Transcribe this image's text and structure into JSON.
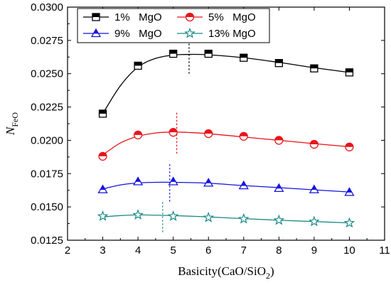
{
  "chart_data": {
    "type": "line",
    "xlabel": {
      "main": "Basicity(CaO/SiO",
      "sub": "2",
      "close": ")"
    },
    "ylabel": {
      "main": "N",
      "sub": "FeO"
    },
    "xlim": [
      2,
      11
    ],
    "ylim": [
      0.0125,
      0.03
    ],
    "xticks": [
      2,
      3,
      4,
      5,
      6,
      7,
      8,
      9,
      10,
      11
    ],
    "yticks": [
      "0.0125",
      "0.0150",
      "0.0175",
      "0.0200",
      "0.0225",
      "0.0250",
      "0.0275",
      "0.0300"
    ],
    "legend_position": "top-left",
    "grid": false,
    "x": [
      3,
      4,
      5,
      6,
      7,
      8,
      9,
      10
    ],
    "series": [
      {
        "name": "1%   MgO",
        "marker": "square",
        "color": "#000000",
        "values": [
          0.022,
          0.0256,
          0.0265,
          0.0265,
          0.0262,
          0.0258,
          0.0254,
          0.0251
        ],
        "curve": [
          [
            3,
            0.022
          ],
          [
            3.5,
            0.0241
          ],
          [
            4,
            0.0255
          ],
          [
            4.5,
            0.02615
          ],
          [
            5,
            0.0264
          ],
          [
            5.5,
            0.02645
          ],
          [
            6,
            0.02642
          ],
          [
            7,
            0.0262
          ],
          [
            8,
            0.02585
          ],
          [
            9,
            0.02545
          ],
          [
            10,
            0.0251
          ]
        ],
        "peak_x": 5.45,
        "peak_range": [
          0.025,
          0.0277
        ]
      },
      {
        "name": "5%   MgO",
        "marker": "circle",
        "color": "#e8141b",
        "values": [
          0.0188,
          0.0204,
          0.0206,
          0.0205,
          0.0203,
          0.02,
          0.0197,
          0.0195
        ],
        "curve": [
          [
            3,
            0.0189
          ],
          [
            3.5,
            0.0198
          ],
          [
            4,
            0.0203
          ],
          [
            4.5,
            0.02055
          ],
          [
            5,
            0.02062
          ],
          [
            5.5,
            0.02058
          ],
          [
            6,
            0.0205
          ],
          [
            7,
            0.02025
          ],
          [
            8,
            0.02
          ],
          [
            9,
            0.01975
          ],
          [
            10,
            0.01952
          ]
        ],
        "peak_x": 5.1,
        "peak_range": [
          0.019,
          0.0222
        ]
      },
      {
        "name": "9%   MgO",
        "marker": "triangle",
        "color": "#1515e0",
        "values": [
          0.0163,
          0.0169,
          0.0169,
          0.0168,
          0.0166,
          0.0164,
          0.0163,
          0.0161
        ],
        "curve": [
          [
            3,
            0.01635
          ],
          [
            3.5,
            0.01665
          ],
          [
            4,
            0.0168
          ],
          [
            4.5,
            0.01685
          ],
          [
            5,
            0.01685
          ],
          [
            6,
            0.01678
          ],
          [
            7,
            0.0166
          ],
          [
            8,
            0.01645
          ],
          [
            9,
            0.01628
          ],
          [
            10,
            0.01612
          ]
        ],
        "peak_x": 4.9,
        "peak_range": [
          0.0154,
          0.0182
        ]
      },
      {
        "name": "13% MgO",
        "marker": "star",
        "color": "#1a8a85",
        "values": [
          0.0143,
          0.0144,
          0.0143,
          0.0142,
          0.0141,
          0.014,
          0.0139,
          0.0138
        ],
        "curve": [
          [
            3,
            0.01425
          ],
          [
            3.5,
            0.01435
          ],
          [
            4,
            0.0144
          ],
          [
            4.5,
            0.01438
          ],
          [
            5,
            0.01435
          ],
          [
            6,
            0.01425
          ],
          [
            7,
            0.01412
          ],
          [
            8,
            0.014
          ],
          [
            9,
            0.0139
          ],
          [
            10,
            0.0138
          ]
        ],
        "peak_x": 4.7,
        "peak_range": [
          0.0131,
          0.0155
        ]
      }
    ]
  }
}
